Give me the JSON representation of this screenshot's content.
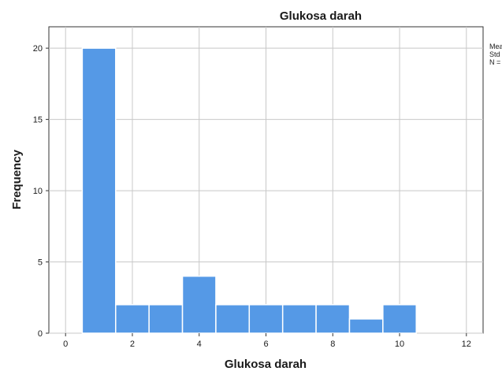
{
  "chart_data": {
    "type": "bar",
    "title": "Glukosa darah",
    "xlabel": "Glukosa darah",
    "ylabel": "Frequency",
    "xlim": [
      -0.5,
      12.5
    ],
    "ylim": [
      0,
      21.5
    ],
    "xticks": [
      0,
      2,
      4,
      6,
      8,
      10,
      12
    ],
    "yticks": [
      0,
      5,
      10,
      15,
      20
    ],
    "grid": true,
    "bar_color": "#5599e6",
    "bins": [
      {
        "x0": 0.5,
        "x1": 1.5,
        "value": 20
      },
      {
        "x0": 1.5,
        "x1": 2.5,
        "value": 2
      },
      {
        "x0": 2.5,
        "x1": 3.5,
        "value": 2
      },
      {
        "x0": 3.5,
        "x1": 4.5,
        "value": 4
      },
      {
        "x0": 4.5,
        "x1": 5.5,
        "value": 2
      },
      {
        "x0": 5.5,
        "x1": 6.5,
        "value": 2
      },
      {
        "x0": 6.5,
        "x1": 7.5,
        "value": 2
      },
      {
        "x0": 7.5,
        "x1": 8.5,
        "value": 2
      },
      {
        "x0": 8.5,
        "x1": 9.5,
        "value": 1
      },
      {
        "x0": 9.5,
        "x1": 10.5,
        "value": 2
      }
    ],
    "stats": [
      "Mea",
      "Std",
      "N ="
    ]
  }
}
